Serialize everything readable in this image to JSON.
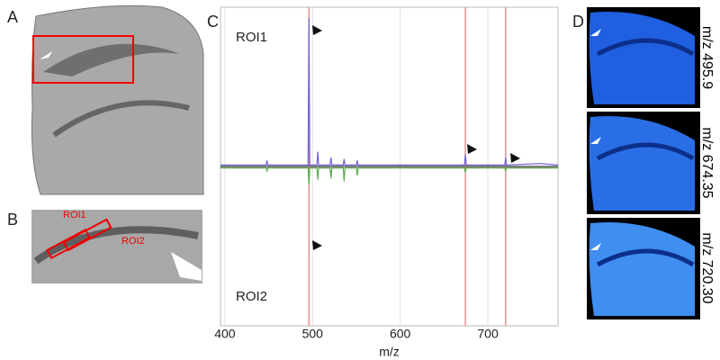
{
  "panel_labels": [
    "A",
    "B",
    "C",
    "D"
  ],
  "roi_labels": [
    "ROI1",
    "ROI2"
  ],
  "image_labels": [
    "m/z 495.9",
    "m/z 674.35",
    "m/z 720.30"
  ],
  "chart_data": {
    "type": "line",
    "x_label": "m/z",
    "xlim": [
      395,
      780
    ],
    "xticks": [
      400,
      500,
      600,
      700
    ],
    "ylim": [
      -100,
      100
    ],
    "grid": true,
    "highlight_x": [
      495.9,
      674.35,
      720.3
    ],
    "highlight_color": "#e89090",
    "x": [
      395,
      440,
      447,
      448,
      449,
      470,
      494.9,
      495.9,
      496.9,
      505,
      506,
      507,
      520,
      521,
      522,
      535,
      536,
      537,
      550,
      551,
      552,
      600,
      673.35,
      674.35,
      675.35,
      719.3,
      720.3,
      721.3,
      760,
      780
    ],
    "series": [
      {
        "name": "ROI1",
        "color": "#6f63d8",
        "values": [
          1,
          1,
          1,
          4,
          1,
          1,
          1,
          100,
          1,
          1,
          10,
          1,
          1,
          6,
          1,
          1,
          5,
          1,
          1,
          4,
          1,
          1,
          1,
          8,
          1,
          1,
          6,
          1,
          2,
          1
        ]
      },
      {
        "name": "ROI2",
        "color": "#5cab4f",
        "values": [
          -1,
          -1,
          -1,
          -3,
          -1,
          -1,
          -1,
          -12,
          -1,
          -1,
          -9,
          -1,
          -1,
          -8,
          -1,
          -1,
          -10,
          -1,
          -1,
          -6,
          -1,
          -1,
          -1,
          -4,
          -1,
          -1,
          -3,
          -1,
          -1,
          -1
        ]
      }
    ]
  }
}
